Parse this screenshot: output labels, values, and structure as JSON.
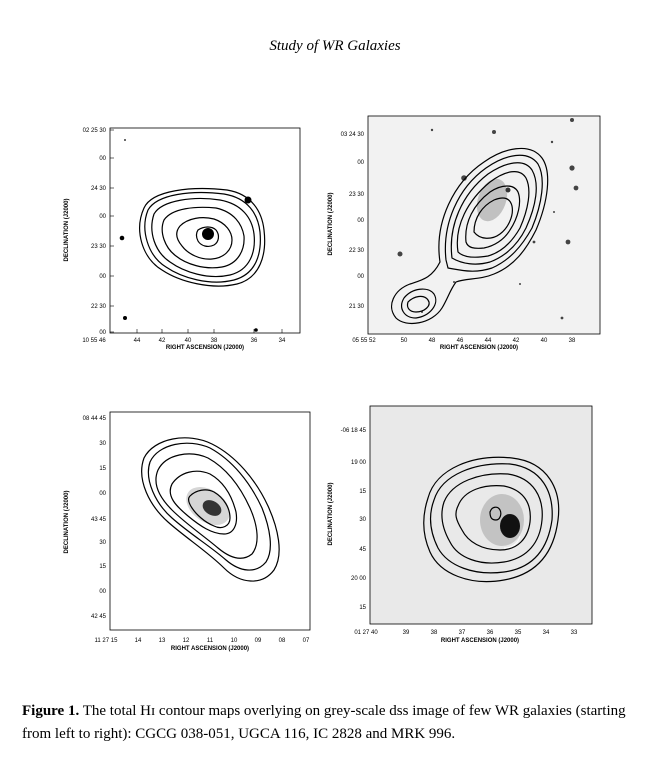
{
  "header": {
    "running_title": "Study of WR Galaxies"
  },
  "panels": [
    {
      "name": "CGCG 038-051",
      "background": "white",
      "dec_ticks": [
        "02 25 30",
        "00",
        "24 30",
        "00",
        "23 30",
        "00",
        "22 30",
        "00"
      ],
      "ra_ticks": [
        "10 55 46",
        "44",
        "42",
        "40",
        "38",
        "36",
        "34"
      ],
      "xlabel": "RIGHT ASCENSION (J2000)",
      "ylabel": "DECLINATION (J2000)"
    },
    {
      "name": "UGCA 116",
      "background": "dss-grey",
      "dec_ticks": [
        "03 24 30",
        "00",
        "23 30",
        "00",
        "22 30",
        "00",
        "21 30"
      ],
      "ra_ticks": [
        "05 55 52",
        "50",
        "48",
        "46",
        "44",
        "42",
        "40",
        "38"
      ],
      "xlabel": "RIGHT ASCENSION (J2000)",
      "ylabel": "DECLINATION (J2000)"
    },
    {
      "name": "IC 2828",
      "background": "white",
      "dec_ticks": [
        "08 44 45",
        "30",
        "15",
        "00",
        "43 45",
        "30",
        "15",
        "00",
        "42 45"
      ],
      "ra_ticks": [
        "11 27 15",
        "14",
        "13",
        "12",
        "11",
        "10",
        "09",
        "08",
        "07"
      ],
      "xlabel": "RIGHT ASCENSION (J2000)",
      "ylabel": "DECLINATION (J2000)"
    },
    {
      "name": "MRK 996",
      "background": "dss-grey",
      "dec_ticks": [
        "-06 18 45",
        "19 00",
        "15",
        "30",
        "45",
        "20 00",
        "15"
      ],
      "ra_ticks": [
        "01 27 40",
        "39",
        "38",
        "37",
        "36",
        "35",
        "34",
        "33"
      ],
      "xlabel": "RIGHT ASCENSION (J2000)",
      "ylabel": "DECLINATION (J2000)"
    }
  ],
  "caption": {
    "label": "Figure 1.",
    "text": "The total Hɪ contour maps overlying on grey-scale dss image of few WR galaxies (starting from left to right): CGCG 038-051, UGCA 116, IC 2828 and MRK 996."
  }
}
